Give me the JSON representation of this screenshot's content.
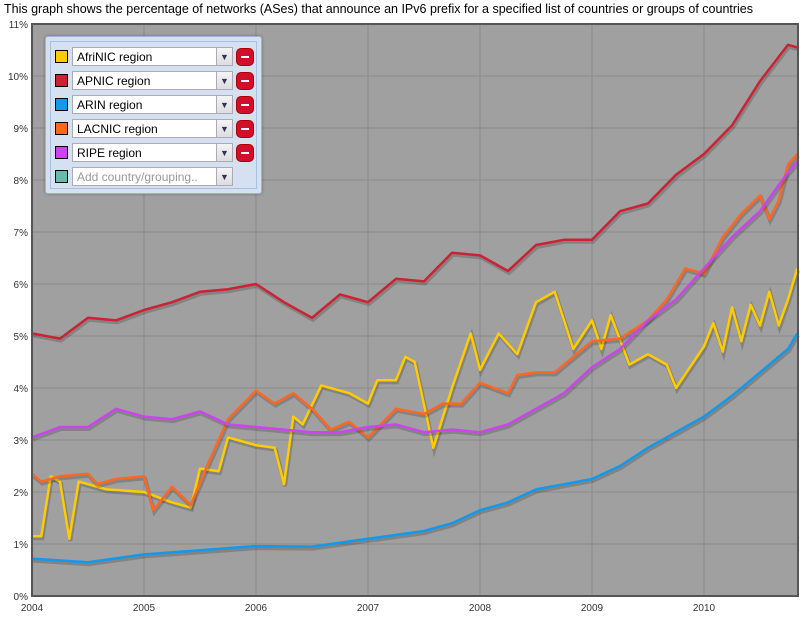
{
  "title": "This graph shows the percentage of networks (ASes) that announce an IPv6 prefix for a specified list of countries or groups of countries",
  "legend": {
    "items": [
      {
        "label": "AfriNIC region",
        "color": "#ffcc00"
      },
      {
        "label": "APNIC region",
        "color": "#cc2233"
      },
      {
        "label": "ARIN region",
        "color": "#1199ee"
      },
      {
        "label": "LACNIC region",
        "color": "#ff6622"
      },
      {
        "label": "RIPE region",
        "color": "#cc44ee"
      }
    ],
    "add_placeholder": "Add country/grouping..",
    "add_color": "#66bbaa",
    "dropdown_icon": "chevron-down-icon",
    "remove_icon": "minus-circle-icon"
  },
  "chart_data": {
    "type": "line",
    "title": "",
    "xlabel": "",
    "ylabel": "",
    "xlim": [
      "2004-01",
      "2010-11"
    ],
    "ylim": [
      0,
      11
    ],
    "grid": true,
    "background": "#a0a0a0",
    "legend_position": "top-left",
    "x_ticks": [
      "2004",
      "2005",
      "2006",
      "2007",
      "2008",
      "2009",
      "2010"
    ],
    "y_ticks": [
      "0%",
      "1%",
      "2%",
      "3%",
      "4%",
      "5%",
      "6%",
      "7%",
      "8%",
      "9%",
      "10%",
      "11%"
    ],
    "series": [
      {
        "name": "AfriNIC region",
        "color": "#ffcc00",
        "points": [
          [
            "2004-01",
            1.15
          ],
          [
            "2004-02",
            1.15
          ],
          [
            "2004-03",
            2.3
          ],
          [
            "2004-04",
            2.2
          ],
          [
            "2004-05",
            1.1
          ],
          [
            "2004-06",
            2.2
          ],
          [
            "2004-09",
            2.05
          ],
          [
            "2005-01",
            2.0
          ],
          [
            "2005-04",
            1.8
          ],
          [
            "2005-06",
            1.7
          ],
          [
            "2005-07",
            2.45
          ],
          [
            "2005-09",
            2.4
          ],
          [
            "2005-10",
            3.05
          ],
          [
            "2006-01",
            2.9
          ],
          [
            "2006-03",
            2.85
          ],
          [
            "2006-04",
            2.15
          ],
          [
            "2006-05",
            3.45
          ],
          [
            "2006-06",
            3.3
          ],
          [
            "2006-08",
            4.05
          ],
          [
            "2006-11",
            3.9
          ],
          [
            "2007-01",
            3.7
          ],
          [
            "2007-02",
            4.15
          ],
          [
            "2007-04",
            4.15
          ],
          [
            "2007-05",
            4.6
          ],
          [
            "2007-06",
            4.5
          ],
          [
            "2007-08",
            2.85
          ],
          [
            "2007-10",
            4.0
          ],
          [
            "2007-12",
            5.05
          ],
          [
            "2008-01",
            4.35
          ],
          [
            "2008-03",
            5.05
          ],
          [
            "2008-05",
            4.65
          ],
          [
            "2008-07",
            5.65
          ],
          [
            "2008-09",
            5.85
          ],
          [
            "2008-11",
            4.75
          ],
          [
            "2009-01",
            5.3
          ],
          [
            "2009-02",
            4.75
          ],
          [
            "2009-03",
            5.4
          ],
          [
            "2009-05",
            4.45
          ],
          [
            "2009-07",
            4.65
          ],
          [
            "2009-09",
            4.45
          ],
          [
            "2009-10",
            4.0
          ],
          [
            "2010-01",
            4.8
          ],
          [
            "2010-02",
            5.25
          ],
          [
            "2010-03",
            4.7
          ],
          [
            "2010-04",
            5.55
          ],
          [
            "2010-05",
            4.9
          ],
          [
            "2010-06",
            5.6
          ],
          [
            "2010-07",
            5.2
          ],
          [
            "2010-08",
            5.85
          ],
          [
            "2010-09",
            5.2
          ],
          [
            "2010-10",
            5.7
          ],
          [
            "2010-11",
            6.3
          ]
        ]
      },
      {
        "name": "APNIC region",
        "color": "#cc2233",
        "points": [
          [
            "2004-01",
            5.05
          ],
          [
            "2004-04",
            4.95
          ],
          [
            "2004-07",
            5.35
          ],
          [
            "2004-10",
            5.3
          ],
          [
            "2005-01",
            5.5
          ],
          [
            "2005-04",
            5.65
          ],
          [
            "2005-07",
            5.85
          ],
          [
            "2005-10",
            5.9
          ],
          [
            "2006-01",
            6.0
          ],
          [
            "2006-04",
            5.65
          ],
          [
            "2006-07",
            5.35
          ],
          [
            "2006-10",
            5.8
          ],
          [
            "2007-01",
            5.65
          ],
          [
            "2007-04",
            6.1
          ],
          [
            "2007-07",
            6.05
          ],
          [
            "2007-10",
            6.6
          ],
          [
            "2008-01",
            6.55
          ],
          [
            "2008-04",
            6.25
          ],
          [
            "2008-07",
            6.75
          ],
          [
            "2008-10",
            6.85
          ],
          [
            "2009-01",
            6.85
          ],
          [
            "2009-04",
            7.4
          ],
          [
            "2009-07",
            7.55
          ],
          [
            "2009-10",
            8.1
          ],
          [
            "2010-01",
            8.5
          ],
          [
            "2010-04",
            9.05
          ],
          [
            "2010-07",
            9.9
          ],
          [
            "2010-10",
            10.6
          ],
          [
            "2010-11",
            10.55
          ]
        ]
      },
      {
        "name": "ARIN region",
        "color": "#1199ee",
        "points": [
          [
            "2004-01",
            0.72
          ],
          [
            "2004-07",
            0.65
          ],
          [
            "2005-01",
            0.8
          ],
          [
            "2005-07",
            0.88
          ],
          [
            "2006-01",
            0.96
          ],
          [
            "2006-07",
            0.95
          ],
          [
            "2007-01",
            1.1
          ],
          [
            "2007-07",
            1.25
          ],
          [
            "2007-10",
            1.4
          ],
          [
            "2008-01",
            1.65
          ],
          [
            "2008-04",
            1.8
          ],
          [
            "2008-07",
            2.05
          ],
          [
            "2008-10",
            2.15
          ],
          [
            "2009-01",
            2.25
          ],
          [
            "2009-04",
            2.5
          ],
          [
            "2009-07",
            2.85
          ],
          [
            "2009-10",
            3.15
          ],
          [
            "2010-01",
            3.45
          ],
          [
            "2010-04",
            3.85
          ],
          [
            "2010-07",
            4.3
          ],
          [
            "2010-10",
            4.75
          ],
          [
            "2010-11",
            5.05
          ]
        ]
      },
      {
        "name": "LACNIC region",
        "color": "#ff6622",
        "points": [
          [
            "2004-01",
            2.35
          ],
          [
            "2004-02",
            2.2
          ],
          [
            "2004-04",
            2.3
          ],
          [
            "2004-07",
            2.35
          ],
          [
            "2004-08",
            2.15
          ],
          [
            "2004-10",
            2.25
          ],
          [
            "2005-01",
            2.3
          ],
          [
            "2005-02",
            1.65
          ],
          [
            "2005-04",
            2.1
          ],
          [
            "2005-06",
            1.75
          ],
          [
            "2005-08",
            2.6
          ],
          [
            "2005-10",
            3.4
          ],
          [
            "2006-01",
            3.95
          ],
          [
            "2006-03",
            3.7
          ],
          [
            "2006-05",
            3.9
          ],
          [
            "2006-07",
            3.6
          ],
          [
            "2006-09",
            3.2
          ],
          [
            "2006-11",
            3.35
          ],
          [
            "2007-01",
            3.05
          ],
          [
            "2007-04",
            3.6
          ],
          [
            "2007-07",
            3.5
          ],
          [
            "2007-09",
            3.7
          ],
          [
            "2007-11",
            3.7
          ],
          [
            "2008-01",
            4.1
          ],
          [
            "2008-04",
            3.9
          ],
          [
            "2008-05",
            4.25
          ],
          [
            "2008-07",
            4.3
          ],
          [
            "2008-09",
            4.3
          ],
          [
            "2008-11",
            4.6
          ],
          [
            "2009-01",
            4.9
          ],
          [
            "2009-04",
            4.95
          ],
          [
            "2009-07",
            5.3
          ],
          [
            "2009-09",
            5.7
          ],
          [
            "2009-11",
            6.3
          ],
          [
            "2010-01",
            6.2
          ],
          [
            "2010-03",
            6.9
          ],
          [
            "2010-05",
            7.35
          ],
          [
            "2010-07",
            7.7
          ],
          [
            "2010-08",
            7.25
          ],
          [
            "2010-09",
            7.6
          ],
          [
            "2010-10",
            8.3
          ],
          [
            "2010-11",
            8.5
          ]
        ]
      },
      {
        "name": "RIPE region",
        "color": "#cc44ee",
        "points": [
          [
            "2004-01",
            3.05
          ],
          [
            "2004-04",
            3.25
          ],
          [
            "2004-07",
            3.25
          ],
          [
            "2004-10",
            3.6
          ],
          [
            "2005-01",
            3.45
          ],
          [
            "2005-04",
            3.4
          ],
          [
            "2005-07",
            3.55
          ],
          [
            "2005-10",
            3.3
          ],
          [
            "2006-01",
            3.25
          ],
          [
            "2006-04",
            3.2
          ],
          [
            "2006-07",
            3.15
          ],
          [
            "2006-10",
            3.15
          ],
          [
            "2007-01",
            3.25
          ],
          [
            "2007-04",
            3.3
          ],
          [
            "2007-07",
            3.15
          ],
          [
            "2007-10",
            3.2
          ],
          [
            "2008-01",
            3.15
          ],
          [
            "2008-04",
            3.3
          ],
          [
            "2008-07",
            3.6
          ],
          [
            "2008-10",
            3.9
          ],
          [
            "2009-01",
            4.4
          ],
          [
            "2009-04",
            4.75
          ],
          [
            "2009-07",
            5.3
          ],
          [
            "2009-10",
            5.7
          ],
          [
            "2010-01",
            6.3
          ],
          [
            "2010-04",
            6.9
          ],
          [
            "2010-07",
            7.4
          ],
          [
            "2010-10",
            8.15
          ],
          [
            "2010-11",
            8.35
          ]
        ]
      }
    ]
  }
}
